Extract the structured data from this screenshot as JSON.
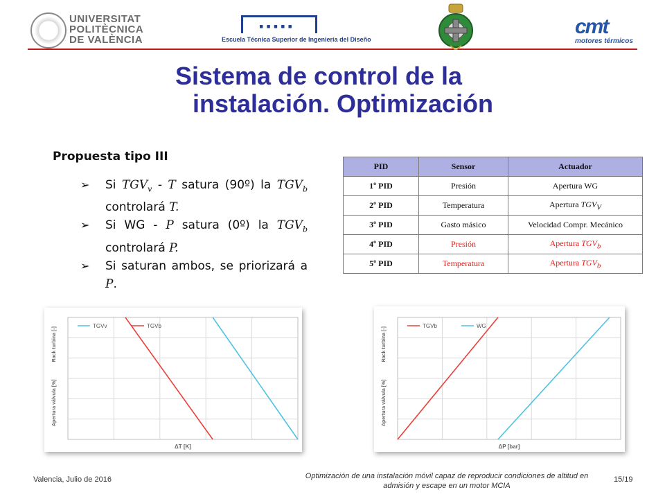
{
  "header": {
    "upv_lines": [
      "UNIVERSITAT",
      "POLITÈCNICA",
      "DE VALÈNCIA"
    ],
    "etsid_text": "Escuela Técnica Superior de Ingeniería del Diseño",
    "cmt_mark": "cmt",
    "cmt_sub": "motores térmicos"
  },
  "title": {
    "line1": "Sistema de control de la",
    "line2": "instalación. Optimización"
  },
  "proposal_title": "Propuesta tipo III",
  "bullets": [
    {
      "pre": "Si ",
      "m1": "TGV",
      "m1sub": "v",
      "mid": " - ",
      "m2": "T",
      "post": " satura (90º) la ",
      "m3": "TGV",
      "m3sub": "b",
      "end": " controlará ",
      "m4": "T."
    },
    {
      "pre": "Si WG - ",
      "m1": "P",
      "post": " satura (0º) la ",
      "m3": "TGV",
      "m3sub": "b",
      "end": " controlará ",
      "m4": "P."
    },
    {
      "pre": "Si saturan ambos, se priorizará a ",
      "m1": "P",
      "post": "."
    }
  ],
  "table": {
    "headers": [
      "PID",
      "Sensor",
      "Actuador"
    ],
    "rows": [
      {
        "pid": "1º PID",
        "sensor": "Presión",
        "act": "Apertura WG",
        "act_math": "",
        "act_sub": ""
      },
      {
        "pid": "2º PID",
        "sensor": "Temperatura",
        "act": "Apertura ",
        "act_math": "TGV",
        "act_sub": "V"
      },
      {
        "pid": "3º PID",
        "sensor": "Gasto másico",
        "act": "Velocidad Compr. Mecánico",
        "act_math": "",
        "act_sub": ""
      },
      {
        "pid": "4º PID",
        "sensor": "Presión",
        "act": "Apertura ",
        "act_math": "TGV",
        "act_sub": "b"
      },
      {
        "pid": "5º PID",
        "sensor": "Temperatura",
        "act": "Apertura  ",
        "act_math": "TGV",
        "act_sub": "b"
      }
    ]
  },
  "chart_data": [
    {
      "type": "line",
      "title": "",
      "xlabel": "ΔT [K]",
      "ylabel_top": "Rack turbina [-]",
      "ylabel_bottom": "Apertura válvula [%]",
      "xlim": [
        0,
        1
      ],
      "ylim": [
        0,
        1
      ],
      "grid": true,
      "legend": "top-left",
      "series": [
        {
          "name": "TGVv",
          "color": "#4fc3e0",
          "x": [
            0.63,
            1.0
          ],
          "y": [
            1.0,
            0.0
          ]
        },
        {
          "name": "TGVb",
          "color": "#e8413c",
          "x": [
            0.25,
            0.63
          ],
          "y": [
            1.0,
            0.0
          ]
        }
      ]
    },
    {
      "type": "line",
      "title": "",
      "xlabel": "ΔP [bar]",
      "ylabel_top": "Rack turbina [-]",
      "ylabel_bottom": "Apertura válvula [%]",
      "xlim": [
        0,
        1
      ],
      "ylim": [
        0,
        1
      ],
      "grid": true,
      "legend": "top-left",
      "series": [
        {
          "name": "TGVb",
          "color": "#e8413c",
          "x": [
            0.0,
            0.45
          ],
          "y": [
            0.0,
            1.0
          ]
        },
        {
          "name": "WG",
          "color": "#4fc3e0",
          "x": [
            0.45,
            0.95
          ],
          "y": [
            0.0,
            1.0
          ]
        }
      ]
    }
  ],
  "footer": {
    "left": "Valencia, Julio de 2016",
    "center": "Optimización de una instalación móvil capaz de reproducir condiciones de altitud en admisión y escape en un motor MCIA",
    "page": "15/19"
  }
}
